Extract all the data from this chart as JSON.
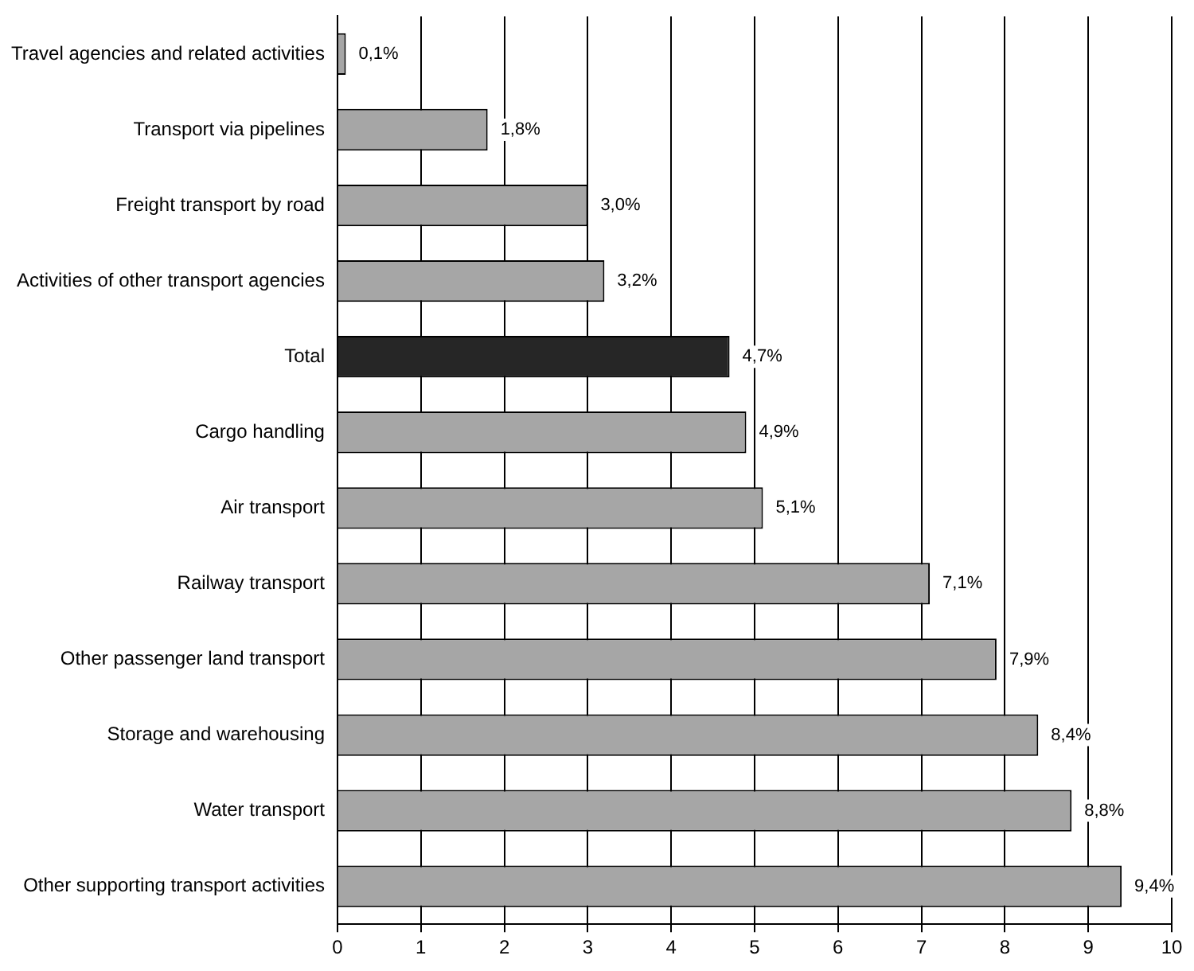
{
  "chart_data": {
    "type": "bar",
    "orientation": "horizontal",
    "categories": [
      "Travel agencies and related activities",
      "Transport via pipelines",
      "Freight transport by road",
      "Activities of other transport agencies",
      "Total",
      "Cargo handling",
      "Air transport",
      "Railway transport",
      "Other passenger land transport",
      "Storage and warehousing",
      "Water transport",
      "Other supporting transport activities"
    ],
    "values": [
      0.1,
      1.8,
      3.0,
      3.2,
      4.7,
      4.9,
      5.1,
      7.1,
      7.9,
      8.4,
      8.8,
      9.4
    ],
    "colors": [
      "#a6a6a6",
      "#a6a6a6",
      "#a6a6a6",
      "#a6a6a6",
      "#262626",
      "#a6a6a6",
      "#a6a6a6",
      "#a6a6a6",
      "#a6a6a6",
      "#a6a6a6",
      "#a6a6a6",
      "#a6a6a6"
    ],
    "value_labels": [
      "0,1%",
      "1,8%",
      "3,0%",
      "3,2%",
      "4,7%",
      "4,9%",
      "5,1%",
      "7,1%",
      "7,9%",
      "8,4%",
      "8,8%",
      "9,4%"
    ],
    "xlim": [
      0,
      10
    ],
    "xticks": [
      0,
      1,
      2,
      3,
      4,
      5,
      6,
      7,
      8,
      9,
      10
    ],
    "grid": "x",
    "legend": false
  }
}
